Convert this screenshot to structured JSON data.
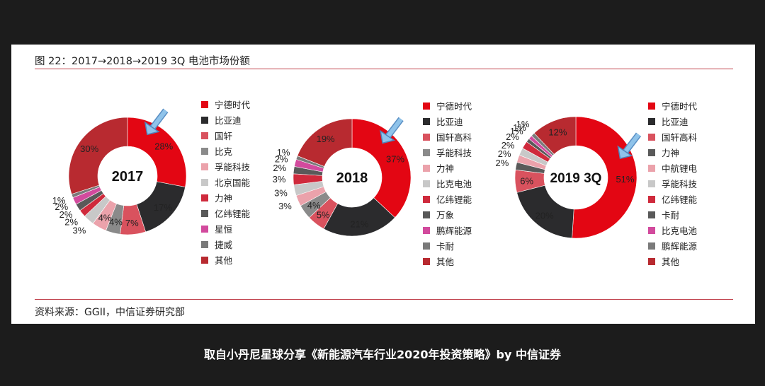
{
  "figure_title": "图 22：2017→2018→2019 3Q 电池市场份额",
  "source_note": "资料来源：GGII，中信证券研究部",
  "caption": "取自小丹尼星球分享《新能源汽车行业2020年投资策略》by 中信证券",
  "chart_data": [
    {
      "type": "pie",
      "center_label": "2017",
      "legend": [
        "宁德时代",
        "比亚迪",
        "国轩",
        "比克",
        "孚能科技",
        "北京国能",
        "力神",
        "亿纬锂能",
        "星恒",
        "捷威",
        "其他"
      ],
      "values": [
        28,
        17,
        7,
        4,
        4,
        3,
        2,
        2,
        2,
        1,
        30
      ],
      "labels": [
        "28%",
        "17%",
        "7%",
        "4%",
        "4%",
        "3%",
        "2%",
        "2%",
        "2%",
        "1%",
        "30%"
      ],
      "colors": [
        "#e30613",
        "#2b2b2d",
        "#d9525e",
        "#8a8a8a",
        "#eba2ab",
        "#c8c8c8",
        "#cf2a3c",
        "#595959",
        "#d24a9d",
        "#7a7a7a",
        "#b82a30"
      ],
      "highlight": "宁德时代"
    },
    {
      "type": "pie",
      "center_label": "2018",
      "legend": [
        "宁德时代",
        "比亚迪",
        "国轩高科",
        "孚能科技",
        "力神",
        "比克电池",
        "亿纬锂能",
        "万象",
        "鹏辉能源",
        "卡耐",
        "其他"
      ],
      "values": [
        37,
        21,
        5,
        4,
        3,
        3,
        3,
        2,
        2,
        1,
        19
      ],
      "labels": [
        "37%",
        "21%",
        "5%",
        "4%",
        "3%",
        "3%",
        "3%",
        "2%",
        "2%",
        "1%",
        "19%"
      ],
      "colors": [
        "#e30613",
        "#2b2b2d",
        "#d9525e",
        "#8a8a8a",
        "#eba2ab",
        "#c8c8c8",
        "#cf2a3c",
        "#595959",
        "#d24a9d",
        "#7a7a7a",
        "#b82a30"
      ],
      "highlight": "宁德时代"
    },
    {
      "type": "pie",
      "center_label": "2019 3Q",
      "legend": [
        "宁德时代",
        "比亚迪",
        "国轩高科",
        "力神",
        "中航锂电",
        "孚能科技",
        "亿纬锂能",
        "卡耐",
        "比克电池",
        "鹏辉能源",
        "其他"
      ],
      "values": [
        51,
        20,
        6,
        2,
        2,
        2,
        2,
        1,
        1,
        1,
        12
      ],
      "labels": [
        "51%",
        "20%",
        "6%",
        "2%",
        "2%",
        "2%",
        "2%",
        "1%",
        "1%",
        "1%",
        "12%"
      ],
      "colors": [
        "#e30613",
        "#2b2b2d",
        "#d9525e",
        "#595959",
        "#eba2ab",
        "#c8c8c8",
        "#cf2a3c",
        "#595959",
        "#d24a9d",
        "#7a7a7a",
        "#b82a30"
      ],
      "highlight": "宁德时代"
    }
  ]
}
